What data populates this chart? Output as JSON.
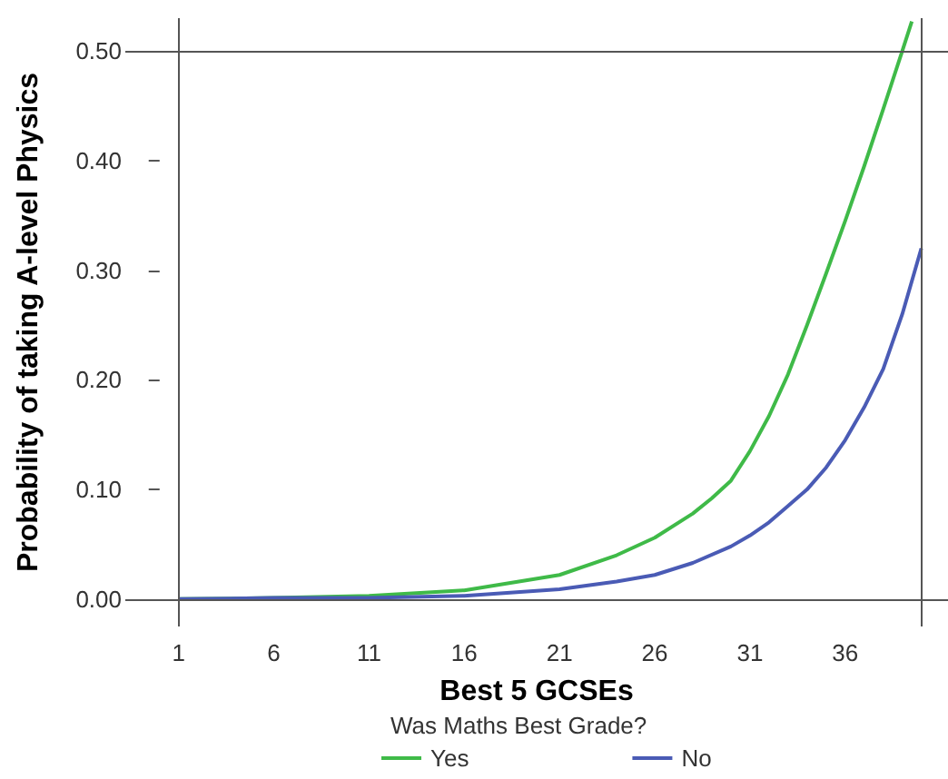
{
  "chart_data": {
    "type": "line",
    "xlabel": "Best 5 GCSEs",
    "ylabel": "Probability of taking A-level Physics",
    "legend_title": "Was Maths Best Grade?",
    "xlim": [
      -1.8,
      41.4
    ],
    "xticks": [
      1,
      6,
      11,
      16,
      21,
      26,
      31,
      36
    ],
    "ylim": [
      -0.025,
      0.53
    ],
    "yticks": [
      {
        "value": 0,
        "label": "0.00"
      },
      {
        "value": 0.1,
        "label": "0.10"
      },
      {
        "value": 0.2,
        "label": "0.20"
      },
      {
        "value": 0.3,
        "label": "0.30"
      },
      {
        "value": 0.4,
        "label": "0.40"
      },
      {
        "value": 0.5,
        "label": "0.50"
      }
    ],
    "series": [
      {
        "name": "Yes",
        "color": "#3fba48",
        "x": [
          1,
          6,
          11,
          16,
          21,
          24,
          26,
          28,
          29,
          30,
          31,
          32,
          33,
          34,
          35,
          36,
          37,
          38,
          39,
          39.5
        ],
        "values": [
          0,
          0.001,
          0.003,
          0.008,
          0.022,
          0.04,
          0.056,
          0.078,
          0.092,
          0.108,
          0.135,
          0.167,
          0.205,
          0.25,
          0.297,
          0.345,
          0.395,
          0.447,
          0.5,
          0.527
        ]
      },
      {
        "name": "No",
        "color": "#4a5bb5",
        "x": [
          1,
          6,
          11,
          16,
          21,
          24,
          26,
          28,
          30,
          31,
          32,
          33,
          34,
          35,
          36,
          37,
          38,
          39,
          40
        ],
        "values": [
          0,
          0.001,
          0.001,
          0.003,
          0.009,
          0.016,
          0.022,
          0.033,
          0.048,
          0.058,
          0.07,
          0.085,
          0.1,
          0.12,
          0.145,
          0.175,
          0.21,
          0.26,
          0.32
        ]
      }
    ],
    "ref_lines": [
      {
        "axis": "y",
        "value": 0,
        "color": "#555555"
      },
      {
        "axis": "y",
        "value": 0.5,
        "color": "#555555"
      },
      {
        "axis": "x",
        "value": 1,
        "color": "#555555"
      },
      {
        "axis": "x",
        "value": 40,
        "color": "#555555"
      }
    ],
    "grid": false,
    "legend": "bottom",
    "marker": "none",
    "line_style": "solid"
  }
}
